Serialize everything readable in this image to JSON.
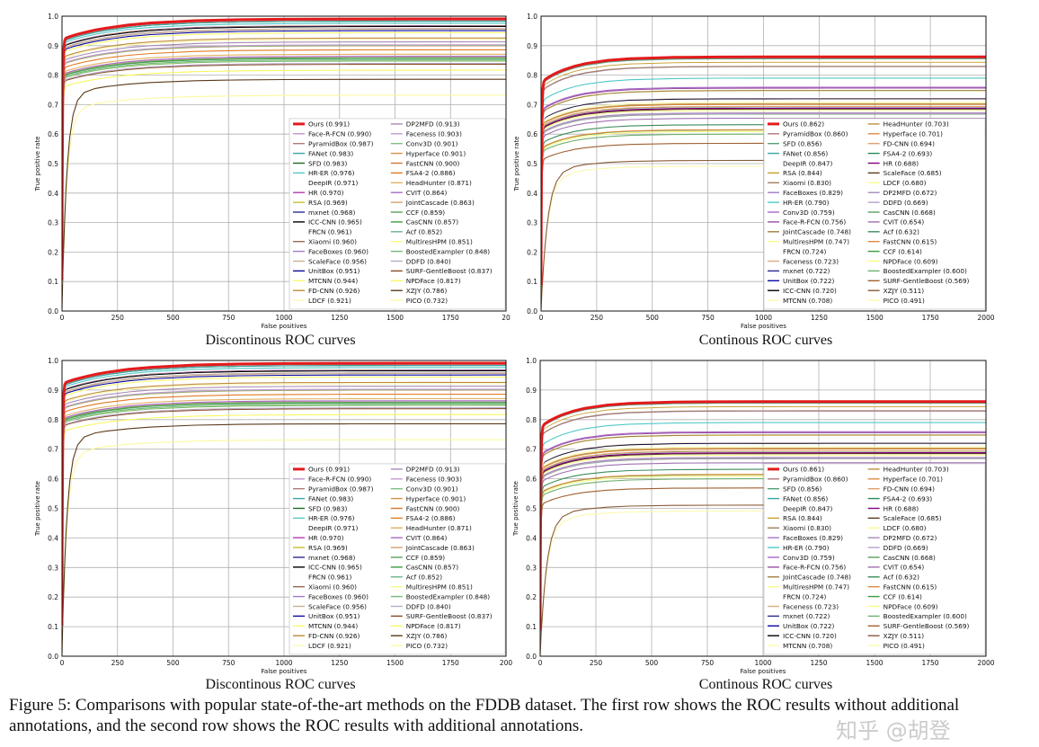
{
  "chart_data": [
    {
      "type": "line",
      "title": "Discontinous ROC curves",
      "xlabel": "False positives",
      "ylabel": "True positive rate",
      "xlim": [
        0,
        2000
      ],
      "ylim": [
        0,
        1
      ],
      "xticks": [
        "0",
        "250",
        "500",
        "750",
        "1000",
        "1250",
        "1500",
        "1750",
        "20"
      ],
      "yticks": [
        "0.0",
        "0.1",
        "0.2",
        "0.3",
        "0.4",
        "0.5",
        "0.6",
        "0.7",
        "0.8",
        "0.9",
        "1.0"
      ],
      "grid": true,
      "legend_position": "bottom-right",
      "series": [
        {
          "name": "Ours",
          "score": 0.991,
          "color": "#e41a1c"
        },
        {
          "name": "Face-R-FCN",
          "score": 0.99,
          "color": "#c58fd0"
        },
        {
          "name": "PyramidBox",
          "score": 0.987,
          "color": "#b07a7a"
        },
        {
          "name": "FANet",
          "score": 0.983,
          "color": "#3aa6a6"
        },
        {
          "name": "SFD",
          "score": 0.983,
          "color": "#1f6b1f"
        },
        {
          "name": "HR-ER",
          "score": 0.976,
          "color": "#52c8c8"
        },
        {
          "name": "DeepIR",
          "score": 0.971,
          "color": "#ffffff"
        },
        {
          "name": "HR",
          "score": 0.97,
          "color": "#b03cb0"
        },
        {
          "name": "RSA",
          "score": 0.969,
          "color": "#c8c030"
        },
        {
          "name": "mxnet",
          "score": 0.968,
          "color": "#2a2a90"
        },
        {
          "name": "ICC-CNN",
          "score": 0.965,
          "color": "#000000"
        },
        {
          "name": "FRCN",
          "score": 0.961,
          "color": "#ffffff"
        },
        {
          "name": "Xiaomi",
          "score": 0.96,
          "color": "#9a6a50"
        },
        {
          "name": "FaceBoxes",
          "score": 0.96,
          "color": "#a57ac8"
        },
        {
          "name": "ScaleFace",
          "score": 0.956,
          "color": "#c8b090"
        },
        {
          "name": "UnitBox",
          "score": 0.951,
          "color": "#0a0aa0"
        },
        {
          "name": "MTCNN",
          "score": 0.944,
          "color": "#f8f870"
        },
        {
          "name": "FD-CNN",
          "score": 0.926,
          "color": "#c08a3a"
        },
        {
          "name": "LDCF",
          "score": 0.921,
          "color": "#fafab0"
        },
        {
          "name": "DP2MFD",
          "score": 0.913,
          "color": "#a88ab8"
        },
        {
          "name": "Faceness",
          "score": 0.903,
          "color": "#c49ad0"
        },
        {
          "name": "Conv3D",
          "score": 0.901,
          "color": "#80c080"
        },
        {
          "name": "Hyperface",
          "score": 0.901,
          "color": "#d89040"
        },
        {
          "name": "FastCNN",
          "score": 0.9,
          "color": "#d07830"
        },
        {
          "name": "FSA4-2",
          "score": 0.886,
          "color": "#e07a20"
        },
        {
          "name": "HeadHunter",
          "score": 0.871,
          "color": "#e0b060"
        },
        {
          "name": "CVIT",
          "score": 0.864,
          "color": "#a868c8"
        },
        {
          "name": "JointCascade",
          "score": 0.863,
          "color": "#d4a070"
        },
        {
          "name": "CCF",
          "score": 0.859,
          "color": "#5aa05a"
        },
        {
          "name": "CasCNN",
          "score": 0.857,
          "color": "#3c9c3c"
        },
        {
          "name": "Acf",
          "score": 0.852,
          "color": "#6ab48a"
        },
        {
          "name": "MultiresHPM",
          "score": 0.851,
          "color": "#fafa80"
        },
        {
          "name": "BoostedExampler",
          "score": 0.848,
          "color": "#78b878"
        },
        {
          "name": "DDFD",
          "score": 0.84,
          "color": "#b8a8c8"
        },
        {
          "name": "SURF-GentleBoost",
          "score": 0.837,
          "color": "#8a4a20"
        },
        {
          "name": "NPDFace",
          "score": 0.817,
          "color": "#f8f860"
        },
        {
          "name": "XZJY",
          "score": 0.786,
          "color": "#5a3a1a"
        },
        {
          "name": "PICO",
          "score": 0.732,
          "color": "#fafaa0"
        }
      ]
    },
    {
      "type": "line",
      "title": "Continous ROC curves",
      "xlabel": "False positives",
      "ylabel": "True positive rate",
      "xlim": [
        0,
        2000
      ],
      "ylim": [
        0,
        1
      ],
      "xticks": [
        "0",
        "250",
        "500",
        "750",
        "1000",
        "1250",
        "1500",
        "1750",
        "2000"
      ],
      "yticks": [
        "0.0",
        "0.1",
        "0.2",
        "0.3",
        "0.4",
        "0.5",
        "0.6",
        "0.7",
        "0.8",
        "0.9",
        "1.0"
      ],
      "grid": true,
      "legend_position": "bottom-right",
      "series": [
        {
          "name": "Ours",
          "score": 0.862,
          "color": "#e41a1c"
        },
        {
          "name": "PyramidBox",
          "score": 0.86,
          "color": "#b07a7a"
        },
        {
          "name": "SFD",
          "score": 0.856,
          "color": "#5aa07a"
        },
        {
          "name": "FANet",
          "score": 0.856,
          "color": "#3aa6a6"
        },
        {
          "name": "DeepIR",
          "score": 0.847,
          "color": "#ffffff"
        },
        {
          "name": "RSA",
          "score": 0.844,
          "color": "#c8a030"
        },
        {
          "name": "Xiaomi",
          "score": 0.83,
          "color": "#a08060"
        },
        {
          "name": "FaceBoxes",
          "score": 0.829,
          "color": "#a57ac8"
        },
        {
          "name": "HR-ER",
          "score": 0.79,
          "color": "#52c8c8"
        },
        {
          "name": "Conv3D",
          "score": 0.759,
          "color": "#a868c8"
        },
        {
          "name": "Face-R-FCN",
          "score": 0.756,
          "color": "#9a50a0"
        },
        {
          "name": "JointCascade",
          "score": 0.748,
          "color": "#a08040"
        },
        {
          "name": "MultiresHPM",
          "score": 0.747,
          "color": "#fafa90"
        },
        {
          "name": "FRCN",
          "score": 0.724,
          "color": "#ffffff"
        },
        {
          "name": "Faceness",
          "score": 0.723,
          "color": "#d8b080"
        },
        {
          "name": "mxnet",
          "score": 0.722,
          "color": "#2a2a90"
        },
        {
          "name": "UnitBox",
          "score": 0.722,
          "color": "#0a0aa0"
        },
        {
          "name": "ICC-CNN",
          "score": 0.72,
          "color": "#000000"
        },
        {
          "name": "MTCNN",
          "score": 0.708,
          "color": "#fafab0"
        },
        {
          "name": "HeadHunter",
          "score": 0.703,
          "color": "#c09040"
        },
        {
          "name": "Hyperface",
          "score": 0.701,
          "color": "#e08a40"
        },
        {
          "name": "FD-CNN",
          "score": 0.694,
          "color": "#e0a070"
        },
        {
          "name": "FSA4-2",
          "score": 0.693,
          "color": "#2a8a5a"
        },
        {
          "name": "HR",
          "score": 0.688,
          "color": "#800080"
        },
        {
          "name": "ScaleFace",
          "score": 0.685,
          "color": "#5a3a1a"
        },
        {
          "name": "LDCF",
          "score": 0.68,
          "color": "#fafa90"
        },
        {
          "name": "DP2MFD",
          "score": 0.672,
          "color": "#a88ab8"
        },
        {
          "name": "DDFD",
          "score": 0.669,
          "color": "#b8a0c8"
        },
        {
          "name": "CasCNN",
          "score": 0.668,
          "color": "#5aa05a"
        },
        {
          "name": "CVIT",
          "score": 0.654,
          "color": "#a070b0"
        },
        {
          "name": "Acf",
          "score": 0.632,
          "color": "#3c8c5c"
        },
        {
          "name": "FastCNN",
          "score": 0.615,
          "color": "#e08a40"
        },
        {
          "name": "CCF",
          "score": 0.614,
          "color": "#3c9c3c"
        },
        {
          "name": "NPDFace",
          "score": 0.609,
          "color": "#fafa80"
        },
        {
          "name": "BoostedExampler",
          "score": 0.6,
          "color": "#70b070"
        },
        {
          "name": "SURF-GentleBoost",
          "score": 0.569,
          "color": "#a06030"
        },
        {
          "name": "XZJY",
          "score": 0.511,
          "color": "#8a5a3a"
        },
        {
          "name": "PICO",
          "score": 0.491,
          "color": "#fafab0"
        }
      ]
    },
    {
      "type": "line",
      "title": "Discontinous ROC curves",
      "xlabel": "False positives",
      "ylabel": "True positive rate",
      "xlim": [
        0,
        2000
      ],
      "ylim": [
        0,
        1
      ],
      "xticks": [
        "0",
        "250",
        "500",
        "750",
        "1000",
        "1250",
        "1500",
        "1750",
        "200"
      ],
      "yticks": [
        "0.0",
        "0.1",
        "0.2",
        "0.3",
        "0.4",
        "0.5",
        "0.6",
        "0.7",
        "0.8",
        "0.9",
        "1.0"
      ],
      "grid": true,
      "legend_position": "bottom-right",
      "series": [
        {
          "name": "Ours",
          "score": 0.991,
          "color": "#e41a1c"
        },
        {
          "name": "Face-R-FCN",
          "score": 0.99,
          "color": "#c58fd0"
        },
        {
          "name": "PyramidBox",
          "score": 0.987,
          "color": "#b07a7a"
        },
        {
          "name": "FANet",
          "score": 0.983,
          "color": "#3aa6a6"
        },
        {
          "name": "SFD",
          "score": 0.983,
          "color": "#1f6b1f"
        },
        {
          "name": "HR-ER",
          "score": 0.976,
          "color": "#52c8c8"
        },
        {
          "name": "DeepIR",
          "score": 0.971,
          "color": "#ffffff"
        },
        {
          "name": "HR",
          "score": 0.97,
          "color": "#b03cb0"
        },
        {
          "name": "RSA",
          "score": 0.969,
          "color": "#c8c030"
        },
        {
          "name": "mxnet",
          "score": 0.968,
          "color": "#2a2a90"
        },
        {
          "name": "ICC-CNN",
          "score": 0.965,
          "color": "#000000"
        },
        {
          "name": "FRCN",
          "score": 0.961,
          "color": "#ffffff"
        },
        {
          "name": "Xiaomi",
          "score": 0.96,
          "color": "#9a6a50"
        },
        {
          "name": "FaceBoxes",
          "score": 0.96,
          "color": "#a57ac8"
        },
        {
          "name": "ScaleFace",
          "score": 0.956,
          "color": "#c8b090"
        },
        {
          "name": "UnitBox",
          "score": 0.951,
          "color": "#0a0aa0"
        },
        {
          "name": "MTCNN",
          "score": 0.944,
          "color": "#f8f870"
        },
        {
          "name": "FD-CNN",
          "score": 0.926,
          "color": "#c08a3a"
        },
        {
          "name": "LDCF",
          "score": 0.921,
          "color": "#fafab0"
        },
        {
          "name": "DP2MFD",
          "score": 0.913,
          "color": "#a88ab8"
        },
        {
          "name": "Faceness",
          "score": 0.903,
          "color": "#c49ad0"
        },
        {
          "name": "Conv3D",
          "score": 0.901,
          "color": "#80c080"
        },
        {
          "name": "Hyperface",
          "score": 0.901,
          "color": "#d89040"
        },
        {
          "name": "FastCNN",
          "score": 0.9,
          "color": "#d07830"
        },
        {
          "name": "FSA4-2",
          "score": 0.886,
          "color": "#e07a20"
        },
        {
          "name": "HeadHunter",
          "score": 0.871,
          "color": "#e0b060"
        },
        {
          "name": "CVIT",
          "score": 0.864,
          "color": "#a868c8"
        },
        {
          "name": "JointCascade",
          "score": 0.863,
          "color": "#d4a070"
        },
        {
          "name": "CCF",
          "score": 0.859,
          "color": "#5aa05a"
        },
        {
          "name": "CasCNN",
          "score": 0.857,
          "color": "#3c9c3c"
        },
        {
          "name": "Acf",
          "score": 0.852,
          "color": "#6ab48a"
        },
        {
          "name": "MultiresHPM",
          "score": 0.851,
          "color": "#fafa80"
        },
        {
          "name": "BoostedExampler",
          "score": 0.848,
          "color": "#78b878"
        },
        {
          "name": "DDFD",
          "score": 0.84,
          "color": "#b8a8c8"
        },
        {
          "name": "SURF-GentleBoost",
          "score": 0.837,
          "color": "#8a4a20"
        },
        {
          "name": "NPDFace",
          "score": 0.817,
          "color": "#f8f860"
        },
        {
          "name": "XZJY",
          "score": 0.786,
          "color": "#5a3a1a"
        },
        {
          "name": "PICO",
          "score": 0.732,
          "color": "#fafaa0"
        }
      ]
    },
    {
      "type": "line",
      "title": "Continous ROC curves",
      "xlabel": "False positives",
      "ylabel": "True positive rate",
      "xlim": [
        0,
        2000
      ],
      "ylim": [
        0,
        1
      ],
      "xticks": [
        "0",
        "250",
        "500",
        "750",
        "1000",
        "1250",
        "1500",
        "1750",
        "2000"
      ],
      "yticks": [
        "0.0",
        "0.1",
        "0.2",
        "0.3",
        "0.4",
        "0.5",
        "0.6",
        "0.7",
        "0.8",
        "0.9",
        "1.0"
      ],
      "grid": true,
      "legend_position": "bottom-right",
      "series": [
        {
          "name": "Ours",
          "score": 0.861,
          "color": "#e41a1c"
        },
        {
          "name": "PyramidBox",
          "score": 0.86,
          "color": "#b07a7a"
        },
        {
          "name": "SFD",
          "score": 0.856,
          "color": "#5aa07a"
        },
        {
          "name": "FANet",
          "score": 0.856,
          "color": "#3aa6a6"
        },
        {
          "name": "DeepIR",
          "score": 0.847,
          "color": "#ffffff"
        },
        {
          "name": "RSA",
          "score": 0.844,
          "color": "#c8a030"
        },
        {
          "name": "Xiaomi",
          "score": 0.83,
          "color": "#a08060"
        },
        {
          "name": "FaceBoxes",
          "score": 0.829,
          "color": "#a57ac8"
        },
        {
          "name": "HR-ER",
          "score": 0.79,
          "color": "#52c8c8"
        },
        {
          "name": "Conv3D",
          "score": 0.759,
          "color": "#a868c8"
        },
        {
          "name": "Face-R-FCN",
          "score": 0.756,
          "color": "#9a50a0"
        },
        {
          "name": "JointCascade",
          "score": 0.748,
          "color": "#a08040"
        },
        {
          "name": "MultiresHPM",
          "score": 0.747,
          "color": "#fafa90"
        },
        {
          "name": "FRCN",
          "score": 0.724,
          "color": "#ffffff"
        },
        {
          "name": "Faceness",
          "score": 0.723,
          "color": "#d8b080"
        },
        {
          "name": "mxnet",
          "score": 0.722,
          "color": "#2a2a90"
        },
        {
          "name": "UnitBox",
          "score": 0.722,
          "color": "#0a0aa0"
        },
        {
          "name": "ICC-CNN",
          "score": 0.72,
          "color": "#000000"
        },
        {
          "name": "MTCNN",
          "score": 0.708,
          "color": "#fafab0"
        },
        {
          "name": "HeadHunter",
          "score": 0.703,
          "color": "#c09040"
        },
        {
          "name": "Hyperface",
          "score": 0.701,
          "color": "#e08a40"
        },
        {
          "name": "FD-CNN",
          "score": 0.694,
          "color": "#e0a070"
        },
        {
          "name": "FSA4-2",
          "score": 0.693,
          "color": "#2a8a5a"
        },
        {
          "name": "HR",
          "score": 0.688,
          "color": "#800080"
        },
        {
          "name": "ScaleFace",
          "score": 0.685,
          "color": "#5a3a1a"
        },
        {
          "name": "LDCF",
          "score": 0.68,
          "color": "#fafa90"
        },
        {
          "name": "DP2MFD",
          "score": 0.672,
          "color": "#a88ab8"
        },
        {
          "name": "DDFD",
          "score": 0.669,
          "color": "#b8a0c8"
        },
        {
          "name": "CasCNN",
          "score": 0.668,
          "color": "#5aa05a"
        },
        {
          "name": "CVIT",
          "score": 0.654,
          "color": "#a070b0"
        },
        {
          "name": "Acf",
          "score": 0.632,
          "color": "#3c8c5c"
        },
        {
          "name": "FastCNN",
          "score": 0.615,
          "color": "#e08a40"
        },
        {
          "name": "CCF",
          "score": 0.614,
          "color": "#3c9c3c"
        },
        {
          "name": "NPDFace",
          "score": 0.609,
          "color": "#fafa80"
        },
        {
          "name": "BoostedExampler",
          "score": 0.6,
          "color": "#70b070"
        },
        {
          "name": "SURF-GentleBoost",
          "score": 0.569,
          "color": "#a06030"
        },
        {
          "name": "XZJY",
          "score": 0.511,
          "color": "#8a5a3a"
        },
        {
          "name": "PICO",
          "score": 0.491,
          "color": "#fafab0"
        }
      ]
    }
  ],
  "caption": {
    "line1": "Figure 5: Comparisons with popular state-of-the-art methods on the FDDB dataset. The first row shows the ROC results without additional",
    "line2": "annotations, and the second row shows the ROC results with additional annotations."
  },
  "watermark": "知乎 @胡登"
}
